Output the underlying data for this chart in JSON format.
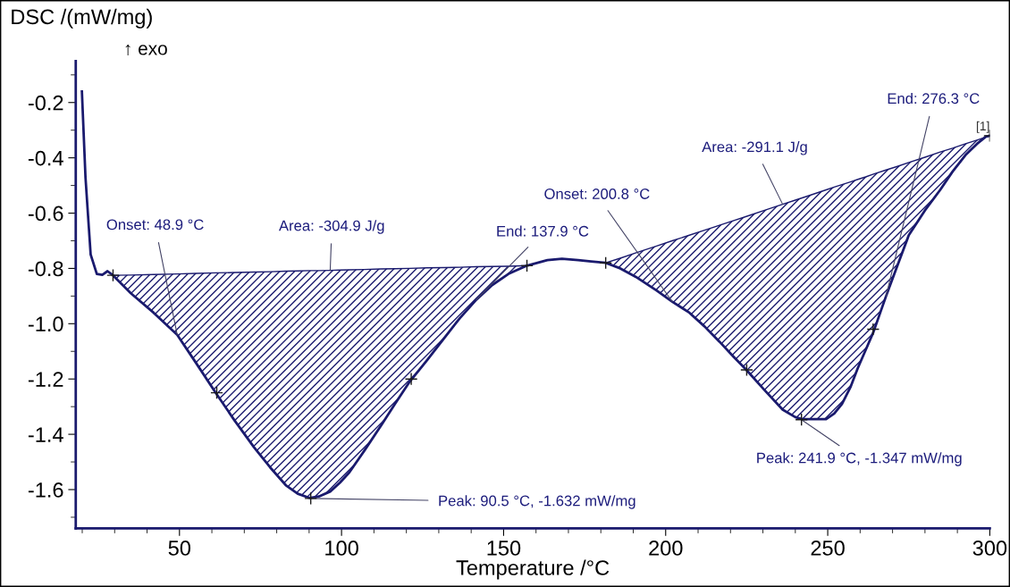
{
  "chart_data": {
    "type": "line",
    "ylabel": "DSC /(mW/mg)",
    "xlabel": "Temperature /°C",
    "xlim": [
      18,
      300
    ],
    "ylim": [
      -1.74,
      -0.05
    ],
    "xticks": [
      50,
      100,
      150,
      200,
      250,
      300
    ],
    "yticks": [
      -1.6,
      -1.4,
      -1.2,
      {
        "value": -1.0,
        "label": "-1.0"
      },
      -0.8,
      -0.6,
      -0.4,
      -0.2
    ],
    "grid": false,
    "series": [
      {
        "name": "[1]",
        "color": "#1a1a6e",
        "x": [
          19.9,
          21,
          22.6,
          24.5,
          26.2,
          27.8,
          29.5,
          35,
          42,
          49.3,
          55,
          61.2,
          67,
          73,
          78,
          82.8,
          86.5,
          90.1,
          93,
          96.5,
          99.5,
          102.4,
          107,
          112.2,
          116.5,
          121,
          126.5,
          131.8,
          136.5,
          141.6,
          146.5,
          151.5,
          157.2,
          163.5,
          168,
          173,
          177,
          181.5,
          186,
          190.7,
          197.2,
          202,
          207.3,
          212,
          216.6,
          221,
          224.9,
          230.5,
          236.1,
          240,
          242.1,
          249.5,
          252,
          254.4,
          257,
          259.3,
          261.7,
          264.1,
          268,
          271.5,
          275,
          280,
          284.7,
          288.5,
          292.5,
          296,
          298.8,
          300
        ],
        "values": [
          -0.16,
          -0.47,
          -0.75,
          -0.82,
          -0.823,
          -0.81,
          -0.825,
          -0.89,
          -0.96,
          -1.04,
          -1.14,
          -1.25,
          -1.35,
          -1.447,
          -1.52,
          -1.584,
          -1.615,
          -1.63,
          -1.625,
          -1.607,
          -1.575,
          -1.538,
          -1.46,
          -1.368,
          -1.29,
          -1.21,
          -1.13,
          -1.05,
          -0.98,
          -0.913,
          -0.86,
          -0.82,
          -0.79,
          -0.77,
          -0.765,
          -0.77,
          -0.775,
          -0.78,
          -0.8,
          -0.83,
          -0.88,
          -0.92,
          -0.96,
          -1.01,
          -1.065,
          -1.12,
          -1.167,
          -1.24,
          -1.311,
          -1.338,
          -1.345,
          -1.345,
          -1.325,
          -1.29,
          -1.23,
          -1.16,
          -1.095,
          -1.03,
          -0.9,
          -0.79,
          -0.68,
          -0.59,
          -0.516,
          -0.45,
          -0.39,
          -0.35,
          -0.323,
          -0.32
        ]
      },
      {
        "type": "line",
        "color": "#1a1a6e",
        "upper": [
          -0.825,
          -0.824,
          -0.822,
          -0.82,
          -0.818,
          -0.816,
          -0.815,
          -0.813,
          -0.812,
          -0.81,
          -0.809,
          -0.808,
          -0.808,
          -0.807,
          -0.806,
          -0.805,
          -0.804,
          -0.802,
          -0.801,
          -0.8,
          -0.798,
          -0.797,
          -0.796,
          -0.794,
          -0.793,
          -0.792,
          -0.79
        ],
        "x": [
          29.5,
          35,
          42,
          49.3,
          55,
          61.2,
          67,
          73,
          78,
          82.8,
          86.5,
          90.1,
          93,
          96.5,
          99.5,
          102.4,
          107,
          112.2,
          116.5,
          121,
          126.5,
          131.8,
          136.5,
          141.6,
          146.5,
          151.5,
          157.2
        ],
        "values": [
          -0.825,
          -0.824,
          -0.822,
          -0.82,
          -0.818,
          -0.816,
          -0.815,
          -0.813,
          -0.812,
          -0.81,
          -0.809,
          -0.808,
          -0.808,
          -0.807,
          -0.806,
          -0.805,
          -0.804,
          -0.802,
          -0.801,
          -0.8,
          -0.798,
          -0.797,
          -0.796,
          -0.794,
          -0.793,
          -0.792,
          -0.79
        ],
        "lower": [
          -0.825,
          -0.89,
          -0.96,
          -1.04,
          -1.14,
          -1.25,
          -1.35,
          -1.447,
          -1.52,
          -1.584,
          -1.615,
          -1.63,
          -1.625,
          -1.607,
          -1.575,
          -1.538,
          -1.46,
          -1.368,
          -1.29,
          -1.21,
          -1.13,
          -1.05,
          -0.98,
          -0.913,
          -0.86,
          -0.82,
          -0.79
        ]
      },
      {
        "type": "line",
        "color": "#1a1a6e",
        "upper": [
          -0.78,
          -0.763,
          -0.744,
          -0.719,
          -0.7,
          -0.68,
          -0.662,
          -0.644,
          -0.627,
          -0.612,
          -0.59,
          -0.568,
          -0.553,
          -0.545,
          -0.516,
          -0.506,
          -0.497,
          -0.487,
          -0.478,
          -0.469,
          -0.459,
          -0.444,
          -0.431,
          -0.417,
          -0.398,
          -0.379,
          -0.365,
          -0.349,
          -0.336,
          -0.325,
          -0.32
        ],
        "x": [
          181.5,
          186,
          190.7,
          197.2,
          202,
          207.3,
          212,
          216.6,
          221,
          224.9,
          230.5,
          236.1,
          240,
          242.1,
          249.5,
          252,
          254.4,
          257,
          259.3,
          261.7,
          264.1,
          268,
          271.5,
          275,
          280,
          284.7,
          288.5,
          292.5,
          296,
          298.8,
          300
        ],
        "values": [
          -0.78,
          -0.763,
          -0.744,
          -0.719,
          -0.7,
          -0.68,
          -0.662,
          -0.644,
          -0.627,
          -0.612,
          -0.59,
          -0.568,
          -0.553,
          -0.545,
          -0.516,
          -0.506,
          -0.497,
          -0.487,
          -0.478,
          -0.469,
          -0.459,
          -0.444,
          -0.431,
          -0.417,
          -0.398,
          -0.379,
          -0.365,
          -0.349,
          -0.336,
          -0.325,
          -0.32
        ],
        "lower": [
          -0.78,
          -0.8,
          -0.83,
          -0.88,
          -0.92,
          -0.96,
          -1.01,
          -1.065,
          -1.12,
          -1.167,
          -1.24,
          -1.311,
          -1.338,
          -1.345,
          -1.345,
          -1.325,
          -1.29,
          -1.23,
          -1.16,
          -1.095,
          -1.03,
          -0.9,
          -0.79,
          -0.68,
          -0.59,
          -0.516,
          -0.45,
          -0.39,
          -0.35,
          -0.323,
          -0.32
        ]
      },
      {
        "type": "scatter",
        "marker": "cross",
        "color": "#1a1a1a",
        "x": [
          29.5,
          61.5,
          90.5,
          121.5,
          157.2,
          181.5,
          225,
          241.9,
          264,
          300
        ],
        "values": [
          -0.825,
          -1.25,
          -1.632,
          -1.2,
          -0.79,
          -0.78,
          -1.167,
          -1.347,
          -1.02,
          -0.32
        ]
      }
    ],
    "annotations": [
      "↑ exo",
      {
        "text": "Onset: 48.9 °C",
        "x": 49.3,
        "y": -1.04
      },
      {
        "text": "Area: -304.9 J/g",
        "x": 96.5,
        "y": -0.807
      },
      {
        "text": "End: 137.9 °C",
        "x": 141.6,
        "y": -0.913
      },
      {
        "text": "Peak: 90.5 °C, -1.632 mW/mg",
        "x": 90.5,
        "y": -1.632
      },
      {
        "text": "Onset: 200.8 °C",
        "x": 202,
        "y": -0.92
      },
      {
        "text": "Area: -291.1 J/g",
        "x": 236.1,
        "y": -0.568
      },
      {
        "text": "End: 276.3 °C",
        "x": 268,
        "y": -0.9
      },
      {
        "text": "Peak: 241.9 °C, -1.347 mW/mg",
        "x": 241.9,
        "y": -1.347
      }
    ]
  }
}
